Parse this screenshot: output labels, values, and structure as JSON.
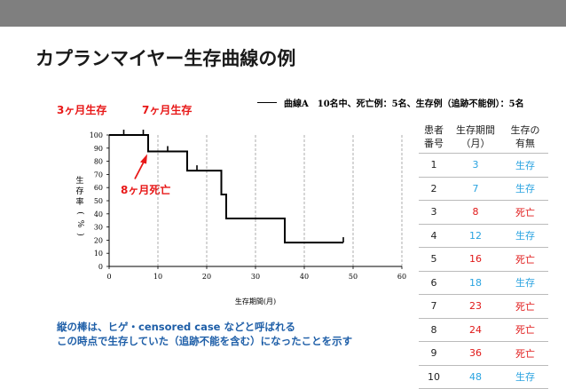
{
  "slide": {
    "title": "カプランマイヤー生存曲線の例",
    "annotations": {
      "survive3": "3ヶ月生存",
      "survive7": "7ヶ月生存",
      "death8": "8ヶ月死亡"
    },
    "legend": "曲線A　10名中、死亡例：5名、生存例（追跡不能例）：5名",
    "note_lines": [
      "縦の棒は、ヒゲ・censored case などと呼ばれる",
      "この時点で生存していた（追跡不能を含む）になったことを示す"
    ],
    "colors": {
      "annotation": "#e81818",
      "note": "#1f5fa8",
      "survive": "#29a3e0",
      "death": "#e01818",
      "topbar": "#7f7f7f"
    }
  },
  "chart_data": {
    "type": "line",
    "style": "step",
    "xlabel": "生存期間(月)",
    "ylabel": "生存率(%)",
    "xlim": [
      0,
      60
    ],
    "ylim": [
      0,
      100
    ],
    "xticks": [
      0,
      10,
      20,
      30,
      40,
      50,
      60
    ],
    "yticks": [
      0,
      10,
      20,
      30,
      40,
      50,
      60,
      70,
      80,
      90,
      100
    ],
    "vertical_gridlines": [
      10,
      20,
      30,
      40,
      50,
      60
    ],
    "series": [
      {
        "name": "曲線A",
        "steps": [
          {
            "x": 0,
            "y": 100
          },
          {
            "x": 8,
            "y": 87.5
          },
          {
            "x": 16,
            "y": 72.9
          },
          {
            "x": 23,
            "y": 54.7
          },
          {
            "x": 24,
            "y": 36.5
          },
          {
            "x": 36,
            "y": 18.2
          },
          {
            "x": 48,
            "y": 18.2
          }
        ],
        "censored": [
          3,
          7,
          12,
          18,
          48
        ]
      }
    ]
  },
  "table": {
    "headers": [
      [
        "患者",
        "番号"
      ],
      [
        "生存期間",
        "（月）"
      ],
      [
        "生存の",
        "有無"
      ]
    ],
    "rows": [
      {
        "no": "1",
        "months": "3",
        "status": "生存"
      },
      {
        "no": "2",
        "months": "7",
        "status": "生存"
      },
      {
        "no": "3",
        "months": "8",
        "status": "死亡"
      },
      {
        "no": "4",
        "months": "12",
        "status": "生存"
      },
      {
        "no": "5",
        "months": "16",
        "status": "死亡"
      },
      {
        "no": "6",
        "months": "18",
        "status": "生存"
      },
      {
        "no": "7",
        "months": "23",
        "status": "死亡"
      },
      {
        "no": "8",
        "months": "24",
        "status": "死亡"
      },
      {
        "no": "9",
        "months": "36",
        "status": "死亡"
      },
      {
        "no": "10",
        "months": "48",
        "status": "生存"
      }
    ]
  }
}
